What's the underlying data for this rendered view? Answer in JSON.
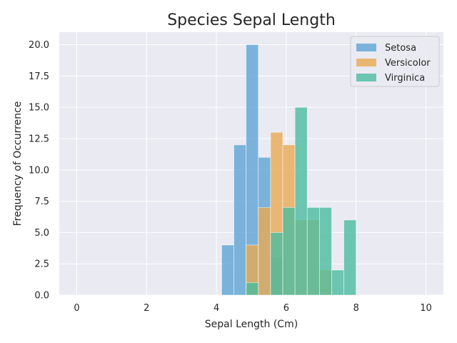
{
  "chart_data": {
    "type": "bar",
    "title": "Species Sepal Length",
    "xlabel": "Sepal Length (Cm)",
    "ylabel": "Frequency of Occurrence",
    "xlim": [
      -0.5,
      10.5
    ],
    "ylim": [
      0,
      21
    ],
    "xticks": [
      0,
      2,
      4,
      6,
      8,
      10
    ],
    "yticks": [
      0.0,
      2.5,
      5.0,
      7.5,
      10.0,
      12.5,
      15.0,
      17.5,
      20.0
    ],
    "bin_width": 0.35,
    "grid": true,
    "legend_position": "top-right",
    "colors": {
      "plot_background": "#eaeaf2",
      "grid": "#ffffff",
      "setosa": "#5ea4d3",
      "versicolor": "#e8aa52",
      "virginica": "#4bbc9f"
    },
    "opacity": 0.8,
    "series": [
      {
        "name": "Setosa",
        "bin_starts": [
          4.15,
          4.5,
          4.85,
          5.2,
          5.55
        ],
        "values": [
          4,
          12,
          20,
          11,
          3
        ]
      },
      {
        "name": "Versicolor",
        "bin_starts": [
          4.85,
          5.2,
          5.55,
          5.9,
          6.25,
          6.6,
          6.95
        ],
        "values": [
          4,
          7,
          13,
          12,
          6,
          6,
          2
        ]
      },
      {
        "name": "Virginica",
        "bin_starts": [
          4.85,
          5.55,
          5.9,
          6.25,
          6.6,
          6.95,
          7.3,
          7.65
        ],
        "values": [
          1,
          5,
          7,
          15,
          7,
          7,
          2,
          6
        ]
      }
    ]
  }
}
